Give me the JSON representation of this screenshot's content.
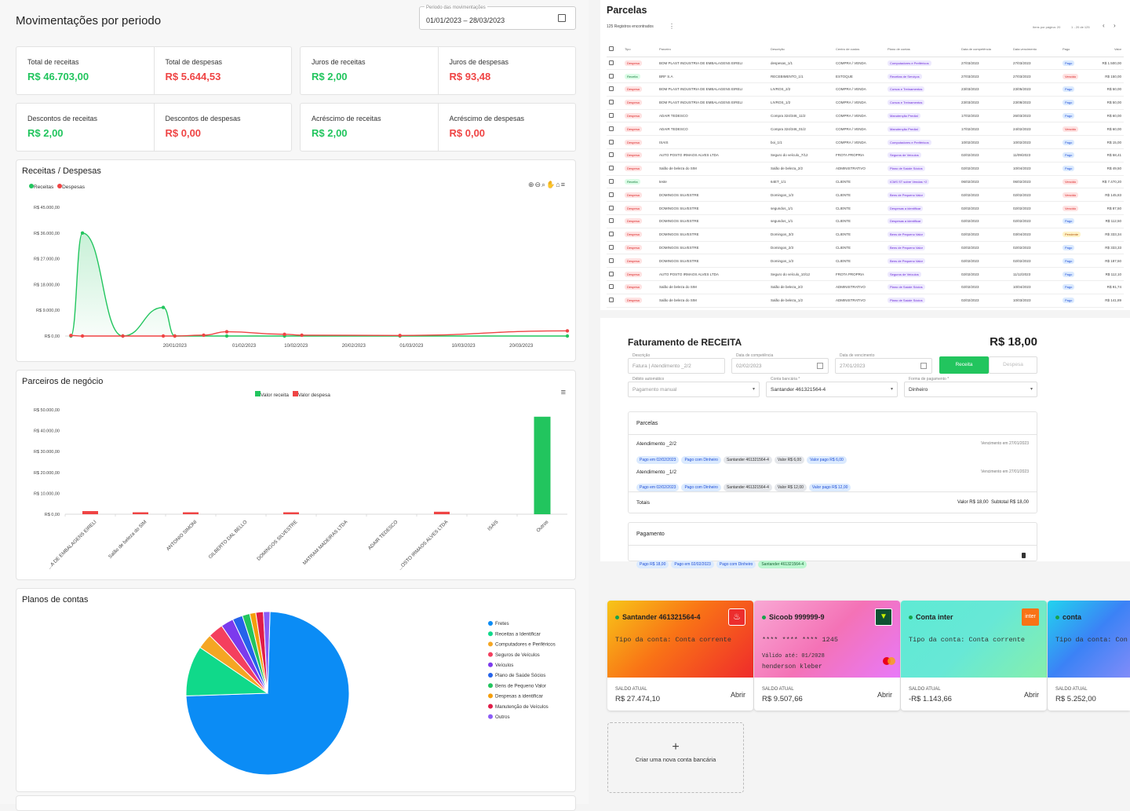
{
  "movimentacoes": {
    "title": "Movimentações por periodo",
    "period_label": "Periodo das movimentações",
    "period_value": "01/01/2023 – 28/03/2023",
    "stats_row1": [
      {
        "label": "Total de receitas",
        "value": "R$ 46.703,00",
        "color": "green"
      },
      {
        "label": "Total de despesas",
        "value": "R$ 5.644,53",
        "color": "red"
      },
      {
        "label": "Juros de receitas",
        "value": "R$ 2,00",
        "color": "green"
      },
      {
        "label": "Juros de despesas",
        "value": "R$ 93,48",
        "color": "red"
      }
    ],
    "stats_row2": [
      {
        "label": "Descontos de receitas",
        "value": "R$ 2,00",
        "color": "green"
      },
      {
        "label": "Descontos de despesas",
        "value": "R$ 0,00",
        "color": "red"
      },
      {
        "label": "Acréscimo de receitas",
        "value": "R$ 2,00",
        "color": "green"
      },
      {
        "label": "Acréscimo de despesas",
        "value": "R$ 0,00",
        "color": "red"
      }
    ]
  },
  "chart_data": [
    {
      "type": "area",
      "title": "Receitas / Despesas",
      "legend": [
        "Receitas",
        "Despesas"
      ],
      "ylabels": [
        "R$ 45.000,00",
        "R$ 36.000,00",
        "R$ 27.000,00",
        "R$ 18.000,00",
        "R$ 9.000,00",
        "R$ 0,00"
      ],
      "ylim": [
        0,
        45000
      ],
      "xlabels": [
        "20/01/2023",
        "01/02/2023",
        "10/02/2023",
        "20/02/2023",
        "01/03/2023",
        "10/03/2023",
        "20/03/2023"
      ],
      "series": [
        {
          "name": "Receitas",
          "color": "#22c55e",
          "values": [
            [
              1,
              0
            ],
            [
              3,
              36000
            ],
            [
              10,
              0
            ],
            [
              17,
              10000
            ],
            [
              19,
              0
            ],
            [
              28,
              0
            ],
            [
              38,
              0
            ],
            [
              58,
              0
            ],
            [
              87,
              0
            ]
          ]
        },
        {
          "name": "Despesas",
          "color": "#ef4444",
          "values": [
            [
              1,
              200
            ],
            [
              3,
              0
            ],
            [
              10,
              0
            ],
            [
              17,
              0
            ],
            [
              19,
              0
            ],
            [
              24,
              300
            ],
            [
              28,
              1500
            ],
            [
              38,
              600
            ],
            [
              41,
              300
            ],
            [
              58,
              200
            ],
            [
              87,
              1800
            ]
          ]
        }
      ]
    },
    {
      "type": "bar",
      "title": "Parceiros de negócio",
      "legend": [
        "Valor receita",
        "Valor despesa"
      ],
      "ylabels": [
        "R$ 50.000,00",
        "R$ 40.000,00",
        "R$ 30.000,00",
        "R$ 20.000,00",
        "R$ 10.000,00",
        "R$ 0,00"
      ],
      "ylim": [
        0,
        50000
      ],
      "categories": [
        "...A DE EMBALAGENS EIRELI",
        "Salão de beleza do SIM",
        "ANTONIO SIMONI",
        "GILBERTO DAL BELLO",
        "DOMINGOS SILVESTRE",
        "MATRAM MADEIRAS LTDA",
        "ADAIR TEDESCO",
        "...OSTO IRMAOS ALVES LTDA",
        "ISAIS",
        "Outros"
      ],
      "series": [
        {
          "name": "Valor receita",
          "color": "#22c55e",
          "values": [
            0,
            0,
            0,
            0,
            0,
            0,
            0,
            0,
            0,
            46700
          ]
        },
        {
          "name": "Valor despesa",
          "color": "#ef4444",
          "values": [
            1500,
            500,
            600,
            0,
            200,
            0,
            0,
            1200,
            0,
            0
          ]
        }
      ]
    },
    {
      "type": "pie",
      "title": "Planos de contas",
      "categories": [
        "Fretes",
        "Receitas a Identificar",
        "Computadores e Periféricos",
        "Seguros de Veículos",
        "Veículos",
        "Plano de Saúde Sócios",
        "Bens de Pequeno Valor",
        "Despesas a identificar",
        "Manutenção de Veículos",
        "Outros"
      ],
      "colors": [
        "#0b8cf5",
        "#10d98a",
        "#f5a623",
        "#f43f5e",
        "#7c3aed",
        "#2563eb",
        "#22c55e",
        "#f59e0b",
        "#e11d48",
        "#8b5cf6"
      ],
      "values": [
        74,
        10,
        3,
        3,
        2.5,
        2,
        1.5,
        1.2,
        1.5,
        1.3
      ]
    }
  ],
  "parcelas": {
    "title": "Parcelas",
    "count": "125 Registros encontrados",
    "per_page": "Itens por página: 20",
    "range": "1 - 20 de 125",
    "headers": [
      "Tipo",
      "Parceiro",
      "Descrição",
      "Centro de custos",
      "Plano de contas",
      "Data de competência",
      "Data vencimento",
      "Pago",
      "Valor"
    ],
    "rows": [
      [
        "Despesa",
        "BOM PLAST INDUSTRIA DE EMBALAGENS EIRELI",
        "despesas_1/1",
        "COMPRA / VENDA",
        "Computadores e Periféricos",
        "27/03/2023",
        "27/03/2023",
        "Pago",
        "R$ 1.500,00"
      ],
      [
        "Receita",
        "BRF S.A",
        "RECEBIMENTO_1/1",
        "ESTOQUE",
        "Receitas de Serviços",
        "27/03/2023",
        "27/03/2023",
        "Vencido",
        "R$ 150,00"
      ],
      [
        "Despesa",
        "BOM PLAST INDUSTRIA DE EMBALAGENS EIRELI",
        "LIVROS_2/2",
        "COMPRA / VENDA",
        "Cursos e Treinamentos",
        "23/03/2023",
        "23/05/2023",
        "Pago",
        "R$ 50,00"
      ],
      [
        "Despesa",
        "BOM PLAST INDUSTRIA DE EMBALAGENS EIRELI",
        "LIVROS_1/2",
        "COMPRA / VENDA",
        "Cursos e Treinamentos",
        "23/03/2023",
        "23/08/2023",
        "Pago",
        "R$ 50,00"
      ],
      [
        "Despesa",
        "ADAIR TEDESCO",
        "Compra 324/346_11/2",
        "COMPRA / VENDA",
        "Manutenção Predial",
        "17/02/2023",
        "26/03/2023",
        "Pago",
        "R$ 60,00"
      ],
      [
        "Despesa",
        "ADAIR TEDESCO",
        "Compra 324/346_01/2",
        "COMPRA / VENDA",
        "Manutenção Predial",
        "17/02/2023",
        "24/02/2023",
        "Vencido",
        "R$ 60,00"
      ],
      [
        "Despesa",
        "ISAIS",
        "boi_1/1",
        "COMPRA / VENDA",
        "Computadores e Periféricos",
        "10/02/2023",
        "10/02/2023",
        "Pago",
        "R$ 15,00"
      ],
      [
        "Despesa",
        "AUTO POSTO IRMAOS ALVES LTDA",
        "Seguro do veículo_7/12",
        "FROTA PROPRIA",
        "Seguros de Veículos",
        "02/02/2023",
        "11/09/2023",
        "Pago",
        "R$ 58,41"
      ],
      [
        "Despesa",
        "Salão de beleza do SIM",
        "Salão de beleza_2/2",
        "ADMINISTRATIVO",
        "Plano de Saúde Sócios",
        "02/02/2023",
        "10/04/2023",
        "Pago",
        "R$ 49,50"
      ],
      [
        "Receita",
        "teste",
        "64ET_1/1",
        "CLIENTE",
        "ICMS ST sobre Vendas +2",
        "06/02/2023",
        "06/02/2023",
        "Vencido",
        "R$ 7.470,20"
      ],
      [
        "Despesa",
        "DOMINGOS SILVESTRE",
        "Domingos_1/3",
        "CLIENTE",
        "Bens de Pequeno Valor",
        "02/02/2023",
        "02/02/2023",
        "Vencido",
        "R$ 145,83"
      ],
      [
        "Despesa",
        "DOMINGOS SILVESTRE",
        "segundos_1/1",
        "CLIENTE",
        "Despesas a identificar",
        "02/02/2023",
        "02/02/2023",
        "Vencido",
        "R$ 87,50"
      ],
      [
        "Despesa",
        "DOMINGOS SILVESTRE",
        "segundos_1/1",
        "CLIENTE",
        "Despesas a identificar",
        "02/02/2023",
        "02/02/2023",
        "Pago",
        "R$ 112,50"
      ],
      [
        "Despesa",
        "DOMINGOS SILVESTRE",
        "Domingos_3/3",
        "CLIENTE",
        "Bens de Pequeno Valor",
        "02/02/2023",
        "03/04/2023",
        "Pendente",
        "R$ 333,34"
      ],
      [
        "Despesa",
        "DOMINGOS SILVESTRE",
        "Domingos_2/3",
        "CLIENTE",
        "Bens de Pequeno Valor",
        "02/02/2023",
        "02/02/2023",
        "Pago",
        "R$ 333,33"
      ],
      [
        "Despesa",
        "DOMINGOS SILVESTRE",
        "Domingos_1/3",
        "CLIENTE",
        "Bens de Pequeno Valor",
        "02/02/2023",
        "02/02/2023",
        "Pago",
        "R$ 187,50"
      ],
      [
        "Despesa",
        "AUTO POSTO IRMAOS ALVES LTDA",
        "Seguro do veículo_10/12",
        "FROTA PROPRIA",
        "Seguros de Veículos",
        "02/02/2023",
        "11/12/2023",
        "Pago",
        "R$ 112,10"
      ],
      [
        "Despesa",
        "Salão de beleza do SIM",
        "Salão de beleza_2/2",
        "ADMINISTRATIVO",
        "Plano de Saúde Sócios",
        "02/02/2023",
        "10/04/2023",
        "Pago",
        "R$ 91,74"
      ],
      [
        "Despesa",
        "Salão de beleza do SIM",
        "Salão de beleza_1/2",
        "ADMINISTRATIVO",
        "Plano de Saúde Sócios",
        "02/02/2023",
        "10/03/2023",
        "Pago",
        "R$ 141,89"
      ]
    ]
  },
  "faturamento": {
    "title": "Faturamento de RECEITA",
    "total": "R$ 18,00",
    "descricao_label": "Descrição",
    "descricao": "Fatura | Atendimento _2/2",
    "competencia_label": "Data de competência",
    "competencia": "02/02/2023",
    "vencimento_label": "Data de vencimento",
    "vencimento": "27/01/2023",
    "btn_receita": "Receita",
    "btn_despesa": "Despesa",
    "debito_label": "Débito automático",
    "debito": "Pagamento manual",
    "conta_label": "Conta bancária *",
    "conta": "Santander 461321564-4",
    "forma_label": "Forma de pagamento *",
    "forma": "Dinheiro",
    "parcelas_title": "Parcelas",
    "parcelas": [
      {
        "name": "Atendimento _2/2",
        "venc": "Vencimento em 27/01/2023",
        "chips": [
          "Pago em 02/02/2023",
          "Pago com Dinheiro",
          "Santander 461321564-4",
          "Valor R$ 6,00",
          "Valor pago R$ 6,00"
        ]
      },
      {
        "name": "Atendimento _1/2",
        "venc": "Vencimento em 27/01/2023",
        "chips": [
          "Pago em 02/02/2023",
          "Pago com Dinheiro",
          "Santander 461321564-4",
          "Valor R$ 12,00",
          "Valor pago R$ 12,00"
        ]
      }
    ],
    "totais_label": "Totais",
    "totais_valor": "Valor R$ 18,00",
    "totais_sub": "Subtotal R$ 18,00",
    "pagamento_title": "Pagamento",
    "pagamento_chips": [
      "Pago R$ 18,00",
      "Pago em 02/02/2023",
      "Pago com Dinheiro",
      "Santander 461321564-4"
    ]
  },
  "contas": {
    "cards": [
      {
        "name": "Santander 461321564-4",
        "line1": "Tipo da conta: Conta corrente",
        "saldo_label": "SALDO ATUAL",
        "saldo": "R$ 27.474,10",
        "abrir": "Abrir"
      },
      {
        "name": "Sicoob 999999-9",
        "line1": "**** **** **** 1245",
        "line2": "Válido até: 01/2028",
        "line3": "henderson kleber",
        "saldo_label": "SALDO ATUAL",
        "saldo": "R$ 9.507,66",
        "abrir": "Abrir"
      },
      {
        "name": "Conta inter",
        "line1": "Tipo da conta: Conta corrente",
        "logo": "inter",
        "saldo_label": "SALDO ATUAL",
        "saldo": "-R$ 1.143,66",
        "abrir": "Abrir"
      },
      {
        "name": "conta",
        "line1": "Tipo da conta: Con",
        "saldo_label": "SALDO ATUAL",
        "saldo": "R$ 5.252,00",
        "abrir": "Abrir"
      }
    ],
    "new_account": "Criar uma nova conta bancária"
  }
}
